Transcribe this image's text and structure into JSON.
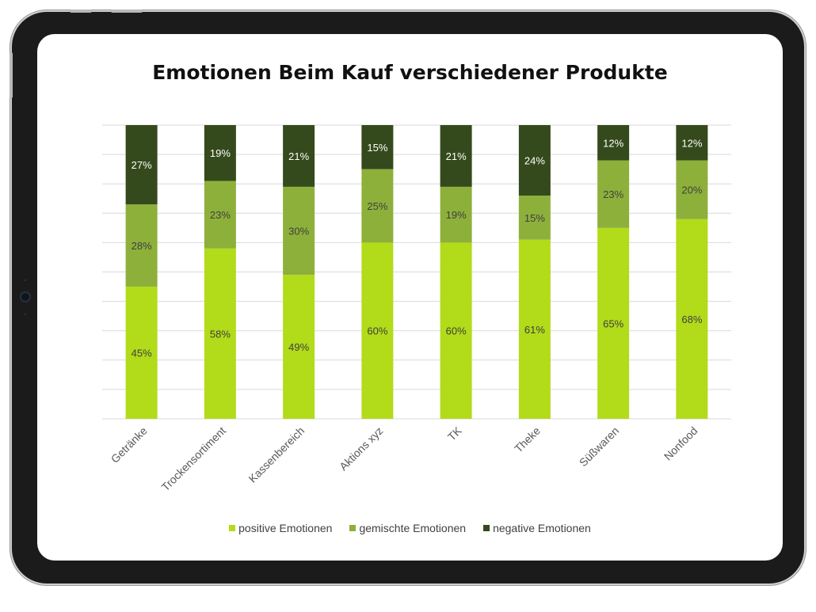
{
  "colors": {
    "positive": "#b2db1a",
    "mixed": "#8db03b",
    "negative": "#344a1c",
    "grid": "#d9d9d9",
    "label_light": "#ffffff",
    "label_dark": "#3f3f3f"
  },
  "chart_data": {
    "type": "bar",
    "stacked": true,
    "title": "Emotionen Beim Kauf verschiedener Produkte",
    "xlabel": "",
    "ylabel": "",
    "ylim": [
      0,
      100
    ],
    "grid": true,
    "legend": "bottom",
    "categories": [
      "Getränke",
      "Trockensortiment",
      "Kassenbereich",
      "Aktions xyz",
      "TK",
      "Theke",
      "Süßwaren",
      "Nonfood"
    ],
    "series": [
      {
        "name": "positive Emotionen",
        "color": "#b2db1a",
        "values": [
          45,
          58,
          49,
          60,
          60,
          61,
          65,
          68
        ]
      },
      {
        "name": "gemischte Emotionen",
        "color": "#8db03b",
        "values": [
          28,
          23,
          30,
          25,
          19,
          15,
          23,
          20
        ]
      },
      {
        "name": "negative Emotionen",
        "color": "#344a1c",
        "values": [
          27,
          19,
          21,
          15,
          21,
          24,
          12,
          12
        ]
      }
    ]
  }
}
